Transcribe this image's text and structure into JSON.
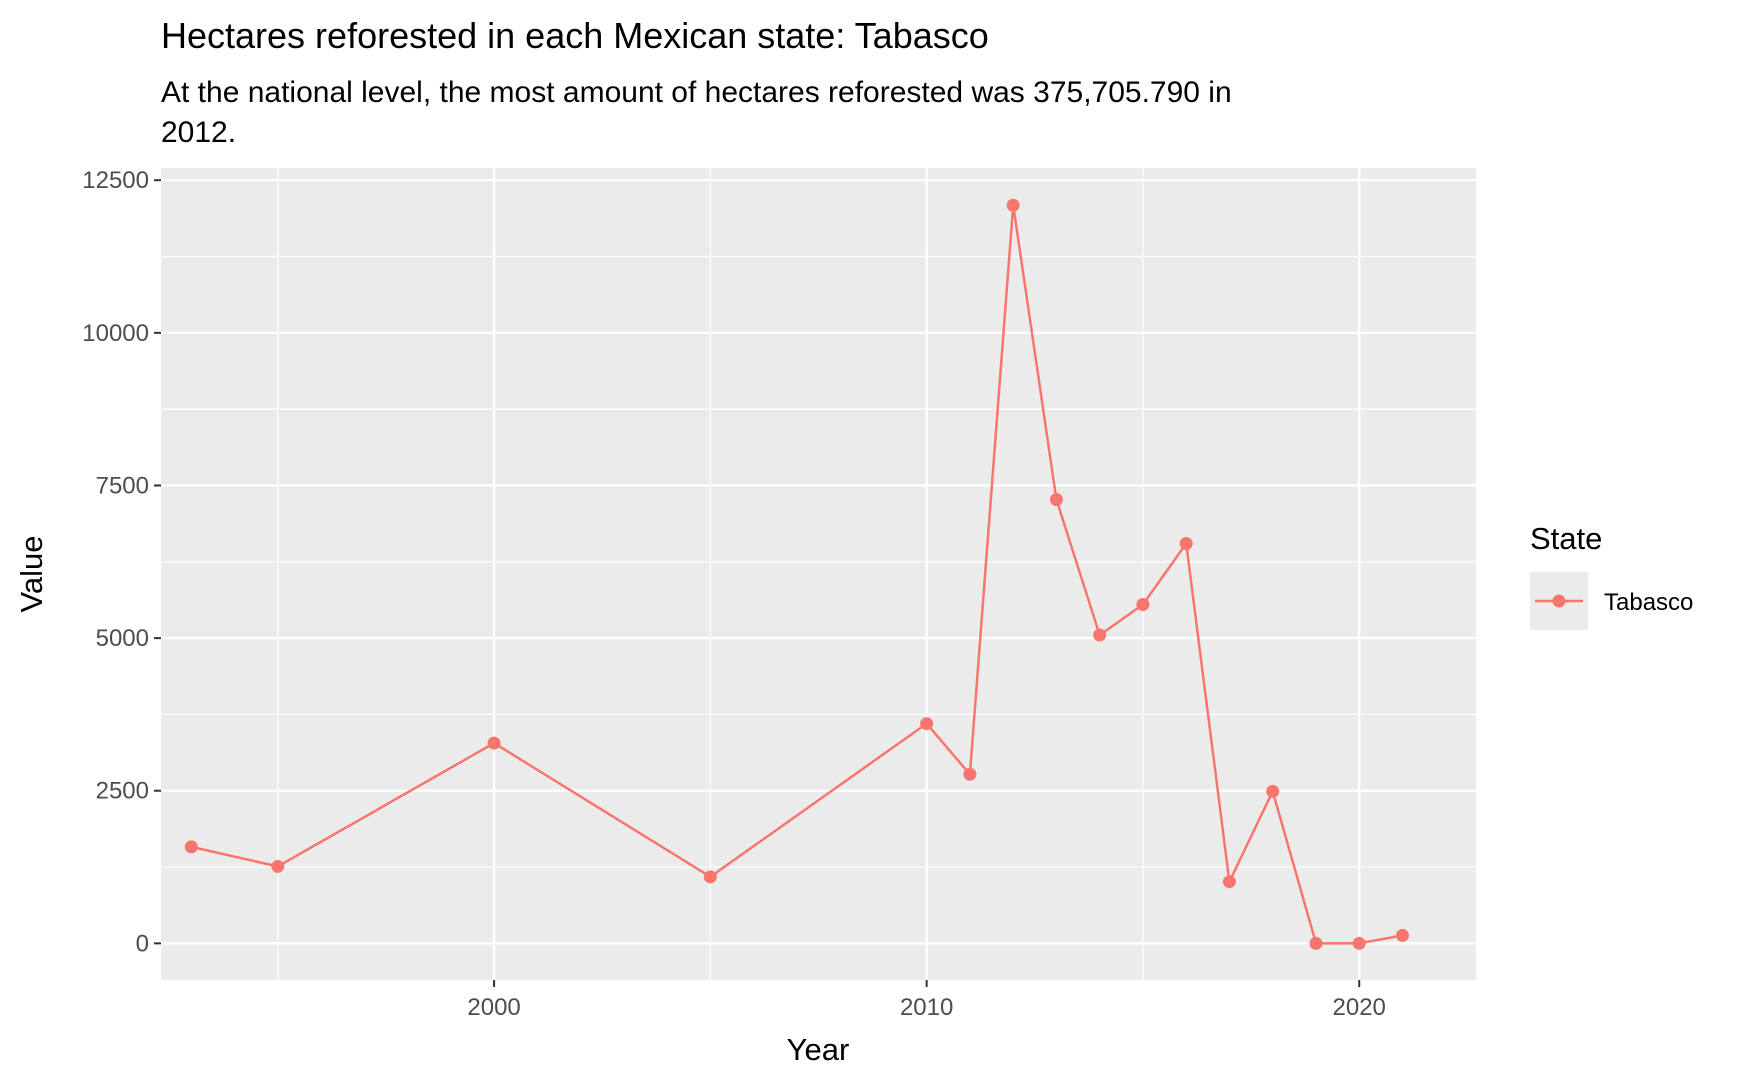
{
  "chart_data": {
    "type": "line",
    "title": "Hectares reforested in each Mexican state: Tabasco",
    "subtitle_lines": [
      "At the national level, the most amount of hectares reforested was 375,705.790 in",
      "2012."
    ],
    "xlabel": "Year",
    "ylabel": "Value",
    "xlim": [
      1992.3,
      2022.7
    ],
    "ylim": [
      -600,
      12700
    ],
    "x_ticks": [
      2000,
      2010,
      2020
    ],
    "x_tick_labels": [
      "2000",
      "2010",
      "2020"
    ],
    "y_ticks": [
      0,
      2500,
      5000,
      7500,
      10000,
      12500
    ],
    "y_tick_labels": [
      "0",
      "2500",
      "5000",
      "7500",
      "10000",
      "12500"
    ],
    "grid": true,
    "legend": {
      "title": "State",
      "placement": "right"
    },
    "series": [
      {
        "name": "Tabasco",
        "color": "#f8766d",
        "x": [
          1993,
          1995,
          2000,
          2005,
          2010,
          2011,
          2012,
          2013,
          2014,
          2015,
          2016,
          2017,
          2018,
          2019,
          2020,
          2021
        ],
        "y": [
          1580,
          1260,
          3280,
          1090,
          3600,
          2770,
          12090,
          7270,
          5050,
          5550,
          6550,
          1010,
          2490,
          0,
          0,
          130
        ]
      }
    ]
  }
}
